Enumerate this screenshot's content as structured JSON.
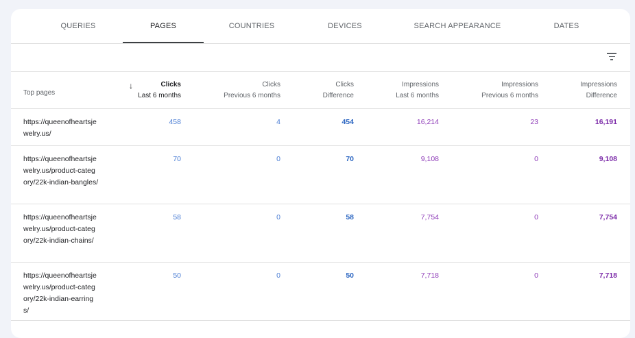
{
  "tabs": [
    "QUERIES",
    "PAGES",
    "COUNTRIES",
    "DEVICES",
    "SEARCH APPEARANCE",
    "DATES"
  ],
  "active_tab": "PAGES",
  "columns": {
    "top_pages": "Top pages",
    "clicks_last": [
      "Clicks",
      "Last 6 months"
    ],
    "clicks_prev": [
      "Clicks",
      "Previous 6 months"
    ],
    "clicks_diff": [
      "Clicks",
      "Difference"
    ],
    "impr_last": [
      "Impressions",
      "Last 6 months"
    ],
    "impr_prev": [
      "Impressions",
      "Previous 6 months"
    ],
    "impr_diff": [
      "Impressions",
      "Difference"
    ],
    "sort_indicator": "↓"
  },
  "rows": [
    {
      "url": "https://queenofheartsjewelry.us/",
      "clicks_last": "458",
      "clicks_prev": "4",
      "clicks_diff": "454",
      "impr_last": "16,214",
      "impr_prev": "23",
      "impr_diff": "16,191"
    },
    {
      "url": "https://queenofheartsjewelry.us/product-category/22k-indian-bangles/",
      "clicks_last": "70",
      "clicks_prev": "0",
      "clicks_diff": "70",
      "impr_last": "9,108",
      "impr_prev": "0",
      "impr_diff": "9,108"
    },
    {
      "url": "https://queenofheartsjewelry.us/product-category/22k-indian-chains/",
      "clicks_last": "58",
      "clicks_prev": "0",
      "clicks_diff": "58",
      "impr_last": "7,754",
      "impr_prev": "0",
      "impr_diff": "7,754"
    },
    {
      "url": "https://queenofheartsjewelry.us/product-category/22k-indian-earrings/",
      "clicks_last": "50",
      "clicks_prev": "0",
      "clicks_diff": "50",
      "impr_last": "7,718",
      "impr_prev": "0",
      "impr_diff": "7,718"
    }
  ],
  "colors": {
    "clicks": "#4a7dd4",
    "impressions": "#8e3cb8",
    "active_tab_underline": "#3c4043"
  },
  "icons": {
    "filter": "filter-icon"
  }
}
